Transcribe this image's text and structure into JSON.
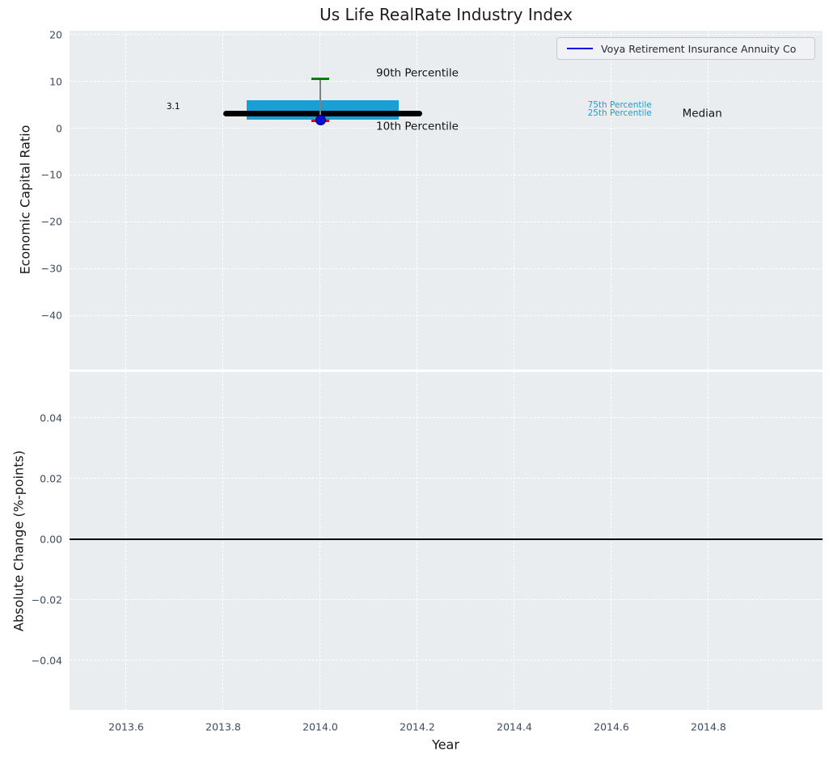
{
  "figure": {
    "title": "Us Life RealRate Industry Index",
    "background": "#ffffff",
    "plot_background": "#e9edef",
    "grid_color": "#ffffff",
    "tick_label_color": "#3d4b5f",
    "text_color": "#161616"
  },
  "chart_data": [
    {
      "type": "box",
      "panel": "top",
      "title": "Us Life RealRate Industry Index",
      "ylabel": "Economic Capital Ratio",
      "xlim": [
        2013.4833,
        2015.035
      ],
      "ylim": [
        -51.5,
        20.8
      ],
      "grid": true,
      "xticks": {
        "values": [
          2013.6,
          2013.8,
          2014.0,
          2014.2,
          2014.4,
          2014.6,
          2014.8
        ],
        "labels": [
          "2013.6",
          "2013.8",
          "2014.0",
          "2014.2",
          "2014.4",
          "2014.6",
          "2014.8"
        ]
      },
      "yticks": {
        "values": [
          20,
          10,
          0,
          -10,
          -20,
          -30,
          -40
        ],
        "labels": [
          "20",
          "10",
          "0",
          "−10",
          "−20",
          "−30",
          "−40"
        ]
      },
      "legend": {
        "label": "Voya Retirement Insurance Annuity Co",
        "line_color": "#0000ee",
        "position": "upper right"
      },
      "box": {
        "x_center": 2014.0,
        "median": 3.1,
        "q25": 1.8,
        "q75": 6.0,
        "p10": 1.55,
        "p90": 10.5,
        "box_x_range": [
          2013.848,
          2014.162
        ],
        "median_x_range": [
          2013.8,
          2014.21
        ],
        "cap_half_width": 0.018,
        "colors": {
          "box": "#1a9fd4",
          "median": "#000000",
          "p90_cap": "#008000",
          "p10_cap": "#e80000",
          "whisker": "#808080"
        }
      },
      "company_point": {
        "x": 2014.0,
        "y": 1.8,
        "color": "#0b0bd6",
        "edge_color": "#000070"
      },
      "annotations": [
        {
          "name": "median-value-label",
          "text": "3.1",
          "x": 2013.697,
          "y": 4.35,
          "color": "#000000",
          "size": 10.5
        },
        {
          "name": "p90-label",
          "text": "90th Percentile",
          "x": 2014.2,
          "y": 11.7,
          "color": "#111111",
          "size": 13.5
        },
        {
          "name": "p10-label",
          "text": "10th Percentile",
          "x": 2014.2,
          "y": 0.25,
          "color": "#111111",
          "size": 13.5
        },
        {
          "name": "p75-label",
          "text": "75th Percentile",
          "x": 2014.617,
          "y": 4.75,
          "color": "#1a9fd4",
          "size": 10.5
        },
        {
          "name": "p25-label",
          "text": "25th Percentile",
          "x": 2014.617,
          "y": 3.0,
          "color": "#1a9fd4",
          "size": 10.5
        },
        {
          "name": "median-label",
          "text": "Median",
          "x": 2014.787,
          "y": 3.0,
          "color": "#111111",
          "size": 13.5
        }
      ]
    },
    {
      "type": "line",
      "panel": "bottom",
      "ylabel": "Absolute Change (%-points)",
      "xlabel": "Year",
      "xlim": [
        2013.4833,
        2015.035
      ],
      "ylim": [
        -0.0563,
        0.0552
      ],
      "grid": true,
      "xticks": {
        "values": [
          2013.6,
          2013.8,
          2014.0,
          2014.2,
          2014.4,
          2014.6,
          2014.8
        ],
        "labels": [
          "2013.6",
          "2013.8",
          "2014.0",
          "2014.2",
          "2014.4",
          "2014.6",
          "2014.8"
        ]
      },
      "yticks": {
        "values": [
          0.04,
          0.02,
          0.0,
          -0.02,
          -0.04
        ],
        "labels": [
          "0.04",
          "0.02",
          "0.00",
          "−0.02",
          "−0.04"
        ]
      },
      "zero_line": {
        "y": 0.0,
        "color": "#000000"
      },
      "series": []
    }
  ]
}
